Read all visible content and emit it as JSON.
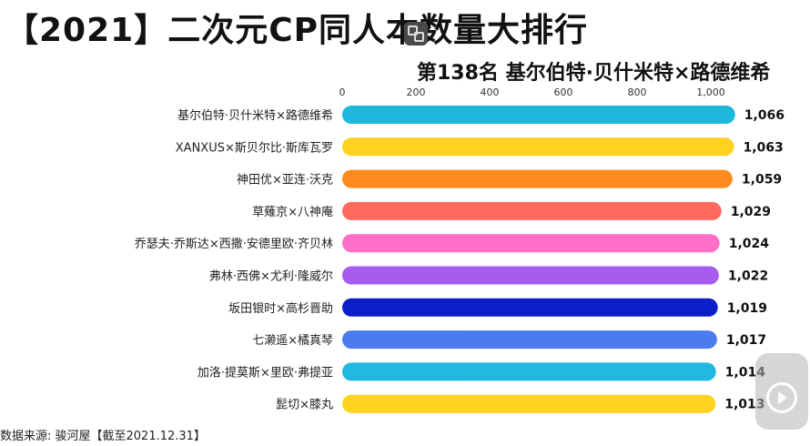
{
  "title": "【2021】二次元CP同人本数量大排行",
  "subtitle": "第138名  基尔伯特·贝什米特×路德维希",
  "source": "数据来源: 骏河屋【截至2021.12.31】",
  "icons": {
    "watermark": "watermark-icon",
    "play": "play-icon"
  },
  "chart_data": {
    "type": "bar",
    "orientation": "horizontal",
    "axis_ticks": [
      "0",
      "200",
      "400",
      "600",
      "800",
      "1,000"
    ],
    "xlim": [
      0,
      1100
    ],
    "categories": [
      "基尔伯特·贝什米特×路德维希",
      "XANXUS×斯贝尔比·斯库瓦罗",
      "神田优×亚连·沃克",
      "草薙京×八神庵",
      "乔瑟夫·乔斯达×西撒·安德里欧·齐贝林",
      "弗林·西佛×尤利·隆威尔",
      "坂田银时×高杉晋助",
      "七濑遥×橘真琴",
      "加洛·提莫斯×里欧·弗提亚",
      "髭切×膝丸"
    ],
    "values": [
      1066,
      1063,
      1059,
      1029,
      1024,
      1022,
      1019,
      1017,
      1014,
      1013
    ],
    "value_labels": [
      "1,066",
      "1,063",
      "1,059",
      "1,029",
      "1,024",
      "1,022",
      "1,019",
      "1,017",
      "1,014",
      "1,013"
    ],
    "colors": [
      "#1EB8DC",
      "#FFD21F",
      "#FF8A1E",
      "#FF6A5C",
      "#FF6FC8",
      "#A65CEE",
      "#0A1FC8",
      "#4C7BF0",
      "#22B9E0",
      "#FFD31E"
    ]
  }
}
